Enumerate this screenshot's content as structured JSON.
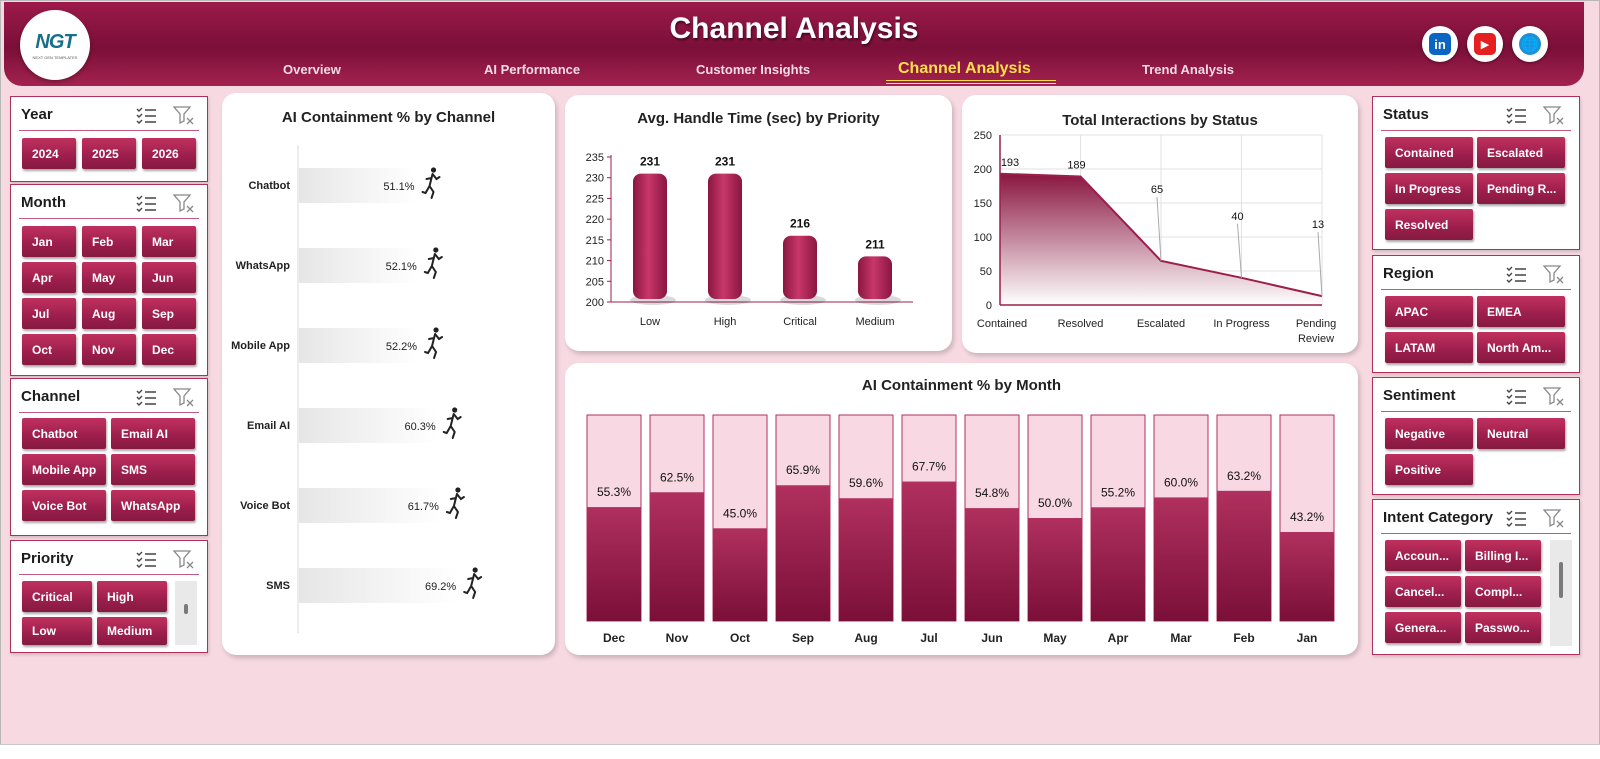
{
  "header": {
    "title": "Channel Analysis",
    "logo_text": "NGT",
    "logo_subtext": "NEXT GEN TEMPLATES",
    "nav": [
      "Overview",
      "AI Performance",
      "Customer Insights",
      "Channel Analysis",
      "Trend Analysis"
    ],
    "active_nav": "Channel Analysis",
    "social": [
      {
        "name": "linkedin-icon",
        "glyph": "in",
        "color": "#0a66c2"
      },
      {
        "name": "youtube-icon",
        "glyph": "▶",
        "color": "#e52020"
      },
      {
        "name": "globe-icon",
        "glyph": "🌐",
        "color": "#1f8fd8"
      }
    ]
  },
  "slicers": {
    "year": {
      "title": "Year",
      "items": [
        "2024",
        "2025",
        "2026"
      ]
    },
    "month": {
      "title": "Month",
      "items": [
        "Jan",
        "Feb",
        "Mar",
        "Apr",
        "May",
        "Jun",
        "Jul",
        "Aug",
        "Sep",
        "Oct",
        "Nov",
        "Dec"
      ]
    },
    "channel": {
      "title": "Channel",
      "items": [
        "Chatbot",
        "Email AI",
        "Mobile App",
        "SMS",
        "Voice Bot",
        "WhatsApp"
      ]
    },
    "priority": {
      "title": "Priority",
      "items": [
        "Critical",
        "High",
        "Low",
        "Medium"
      ]
    },
    "status": {
      "title": "Status",
      "items": [
        "Contained",
        "Escalated",
        "In Progress",
        "Pending R...",
        "Resolved"
      ]
    },
    "region": {
      "title": "Region",
      "items": [
        "APAC",
        "EMEA",
        "LATAM",
        "North Am..."
      ]
    },
    "sentiment": {
      "title": "Sentiment",
      "items": [
        "Negative",
        "Neutral",
        "Positive"
      ]
    },
    "intent": {
      "title": "Intent Category",
      "items": [
        "Accoun...",
        "Billing I...",
        "Cancel...",
        "Compl...",
        "Genera...",
        "Passwo..."
      ]
    }
  },
  "colors": {
    "accent": "#9c1e4b",
    "light": "#f6d3de"
  },
  "chart_data": [
    {
      "id": "containment_by_channel",
      "type": "bar",
      "title": "AI Containment  % by Channel",
      "categories": [
        "Chatbot",
        "WhatsApp",
        "Mobile App",
        "Email AI",
        "Voice Bot",
        "SMS"
      ],
      "values": [
        51.1,
        52.1,
        52.2,
        60.3,
        61.7,
        69.2
      ],
      "labels": [
        "51.1%",
        "52.1%",
        "52.2%",
        "60.3%",
        "61.7%",
        "69.2%"
      ]
    },
    {
      "id": "handle_time_by_priority",
      "type": "bar",
      "title": "Avg. Handle Time (sec) by Priority",
      "categories": [
        "Low",
        "High",
        "Critical",
        "Medium"
      ],
      "values": [
        231,
        231,
        216,
        211
      ],
      "ylim": [
        200,
        235
      ],
      "yticks": [
        200,
        205,
        210,
        215,
        220,
        225,
        230,
        235
      ]
    },
    {
      "id": "interactions_by_status",
      "type": "area",
      "title": "Total Interactions by Status",
      "categories": [
        "Contained",
        "Resolved",
        "Escalated",
        "In Progress",
        "Pending Review"
      ],
      "values": [
        193,
        189,
        65,
        40,
        13
      ],
      "ylim": [
        0,
        250
      ],
      "yticks": [
        0,
        50,
        100,
        150,
        200,
        250
      ]
    },
    {
      "id": "containment_by_month",
      "type": "bar",
      "title": "AI Containment  % by Month",
      "categories": [
        "Dec",
        "Nov",
        "Oct",
        "Sep",
        "Aug",
        "Jul",
        "Jun",
        "May",
        "Apr",
        "Mar",
        "Feb",
        "Jan"
      ],
      "values": [
        55.3,
        62.5,
        45.0,
        65.9,
        59.6,
        67.7,
        54.8,
        50.0,
        55.2,
        60.0,
        63.2,
        43.2
      ],
      "labels": [
        "55.3%",
        "62.5%",
        "45.0%",
        "65.9%",
        "59.6%",
        "67.7%",
        "54.8%",
        "50.0%",
        "55.2%",
        "60.0%",
        "63.2%",
        "43.2%"
      ],
      "ylim": [
        0,
        100
      ]
    }
  ]
}
